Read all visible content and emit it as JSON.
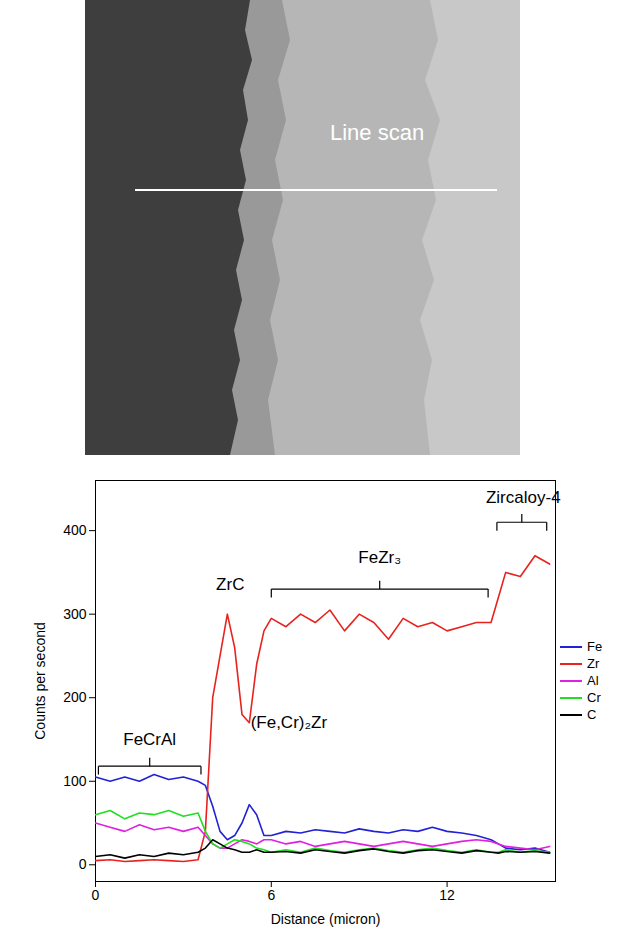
{
  "micrograph": {
    "label": "Line scan"
  },
  "chart_data": {
    "type": "line",
    "xlabel": "Distance (micron)",
    "ylabel": "Counts per second",
    "xlim": [
      0,
      15.7
    ],
    "xticks": [
      0,
      6,
      12
    ],
    "ylim": [
      -20,
      460
    ],
    "yticks": [
      0,
      100,
      200,
      300,
      400
    ],
    "legend": "right",
    "x": [
      0,
      0.5,
      1,
      1.5,
      2,
      2.5,
      3,
      3.5,
      3.75,
      4,
      4.25,
      4.5,
      4.75,
      5,
      5.25,
      5.5,
      5.75,
      6,
      6.5,
      7,
      7.5,
      8,
      8.5,
      9,
      9.5,
      10,
      10.5,
      11,
      11.5,
      12,
      12.5,
      13,
      13.5,
      13.75,
      14,
      14.5,
      15,
      15.5
    ],
    "series": [
      {
        "name": "Fe",
        "color": "#2222d4",
        "values": [
          105,
          100,
          105,
          100,
          108,
          102,
          105,
          100,
          95,
          70,
          40,
          30,
          35,
          50,
          72,
          60,
          35,
          35,
          40,
          38,
          42,
          40,
          38,
          43,
          40,
          38,
          42,
          40,
          45,
          40,
          38,
          35,
          30,
          25,
          20,
          18,
          20,
          15
        ]
      },
      {
        "name": "Zr",
        "color": "#e8231e",
        "values": [
          5,
          6,
          4,
          5,
          6,
          5,
          4,
          6,
          40,
          200,
          250,
          300,
          260,
          180,
          170,
          240,
          280,
          295,
          285,
          300,
          290,
          305,
          280,
          300,
          290,
          270,
          295,
          285,
          290,
          280,
          285,
          290,
          290,
          320,
          350,
          345,
          370,
          360
        ]
      },
      {
        "name": "Al",
        "color": "#e020e0",
        "values": [
          50,
          45,
          40,
          48,
          42,
          45,
          40,
          45,
          35,
          25,
          20,
          20,
          25,
          30,
          28,
          25,
          30,
          30,
          25,
          28,
          22,
          25,
          28,
          25,
          22,
          25,
          28,
          25,
          22,
          25,
          28,
          30,
          28,
          25,
          22,
          20,
          18,
          22
        ]
      },
      {
        "name": "Cr",
        "color": "#22dd22",
        "values": [
          60,
          65,
          55,
          62,
          60,
          65,
          58,
          62,
          40,
          25,
          20,
          25,
          30,
          28,
          25,
          20,
          18,
          15,
          18,
          15,
          20,
          17,
          15,
          18,
          20,
          17,
          15,
          18,
          20,
          17,
          15,
          18,
          15,
          15,
          18,
          15,
          17,
          15
        ]
      },
      {
        "name": "C",
        "color": "#000000",
        "values": [
          10,
          12,
          8,
          12,
          10,
          14,
          12,
          15,
          20,
          30,
          25,
          20,
          18,
          15,
          15,
          18,
          15,
          15,
          16,
          14,
          18,
          16,
          14,
          17,
          19,
          16,
          14,
          17,
          18,
          16,
          14,
          17,
          15,
          14,
          16,
          15,
          16,
          14
        ]
      }
    ],
    "annotations": [
      {
        "text": "FeCrAl",
        "x": 1.85,
        "y": 150,
        "span": [
          0.1,
          3.6
        ],
        "brace_y": 118
      },
      {
        "text": "ZrC",
        "x": 4.6,
        "y": 335
      },
      {
        "text": "(Fe,Cr)₂Zr",
        "x": 6.6,
        "y": 170
      },
      {
        "text": "FeZr₃",
        "x": 9.7,
        "y": 368,
        "span": [
          6,
          13.4
        ],
        "brace_y": 330
      },
      {
        "text": "Zircaloy-4",
        "x": 14.6,
        "y": 440,
        "span": [
          13.7,
          15.4
        ],
        "brace_y": 410
      }
    ]
  }
}
